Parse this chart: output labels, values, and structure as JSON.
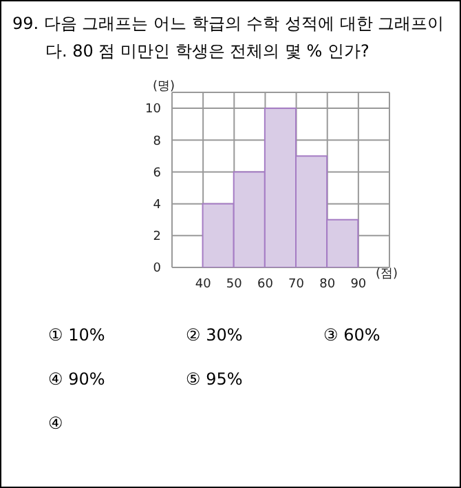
{
  "chart_data": {
    "type": "histogram",
    "title": "99. 다음 그래프는 어느 학급의 수학 성적에 대한 그래프이다. 80 점 미만인 학생은 전체의 몇 % 인가?",
    "xlabel": "(점)",
    "ylabel": "(명)",
    "bins": [
      40,
      50,
      60,
      70,
      80,
      90
    ],
    "values": [
      4,
      6,
      10,
      7,
      3
    ],
    "color": "#d9cce6",
    "xlim": [
      30,
      100
    ],
    "xticks": [
      40,
      50,
      60,
      70,
      80,
      90
    ],
    "ylim": [
      0,
      11
    ],
    "yticks": [
      0,
      2,
      4,
      6,
      8,
      10
    ],
    "grid": true,
    "annotations": [
      "① 10%",
      "② 30%",
      "③ 60%",
      "④ 90%",
      "⑤ 95%",
      "④"
    ]
  }
}
